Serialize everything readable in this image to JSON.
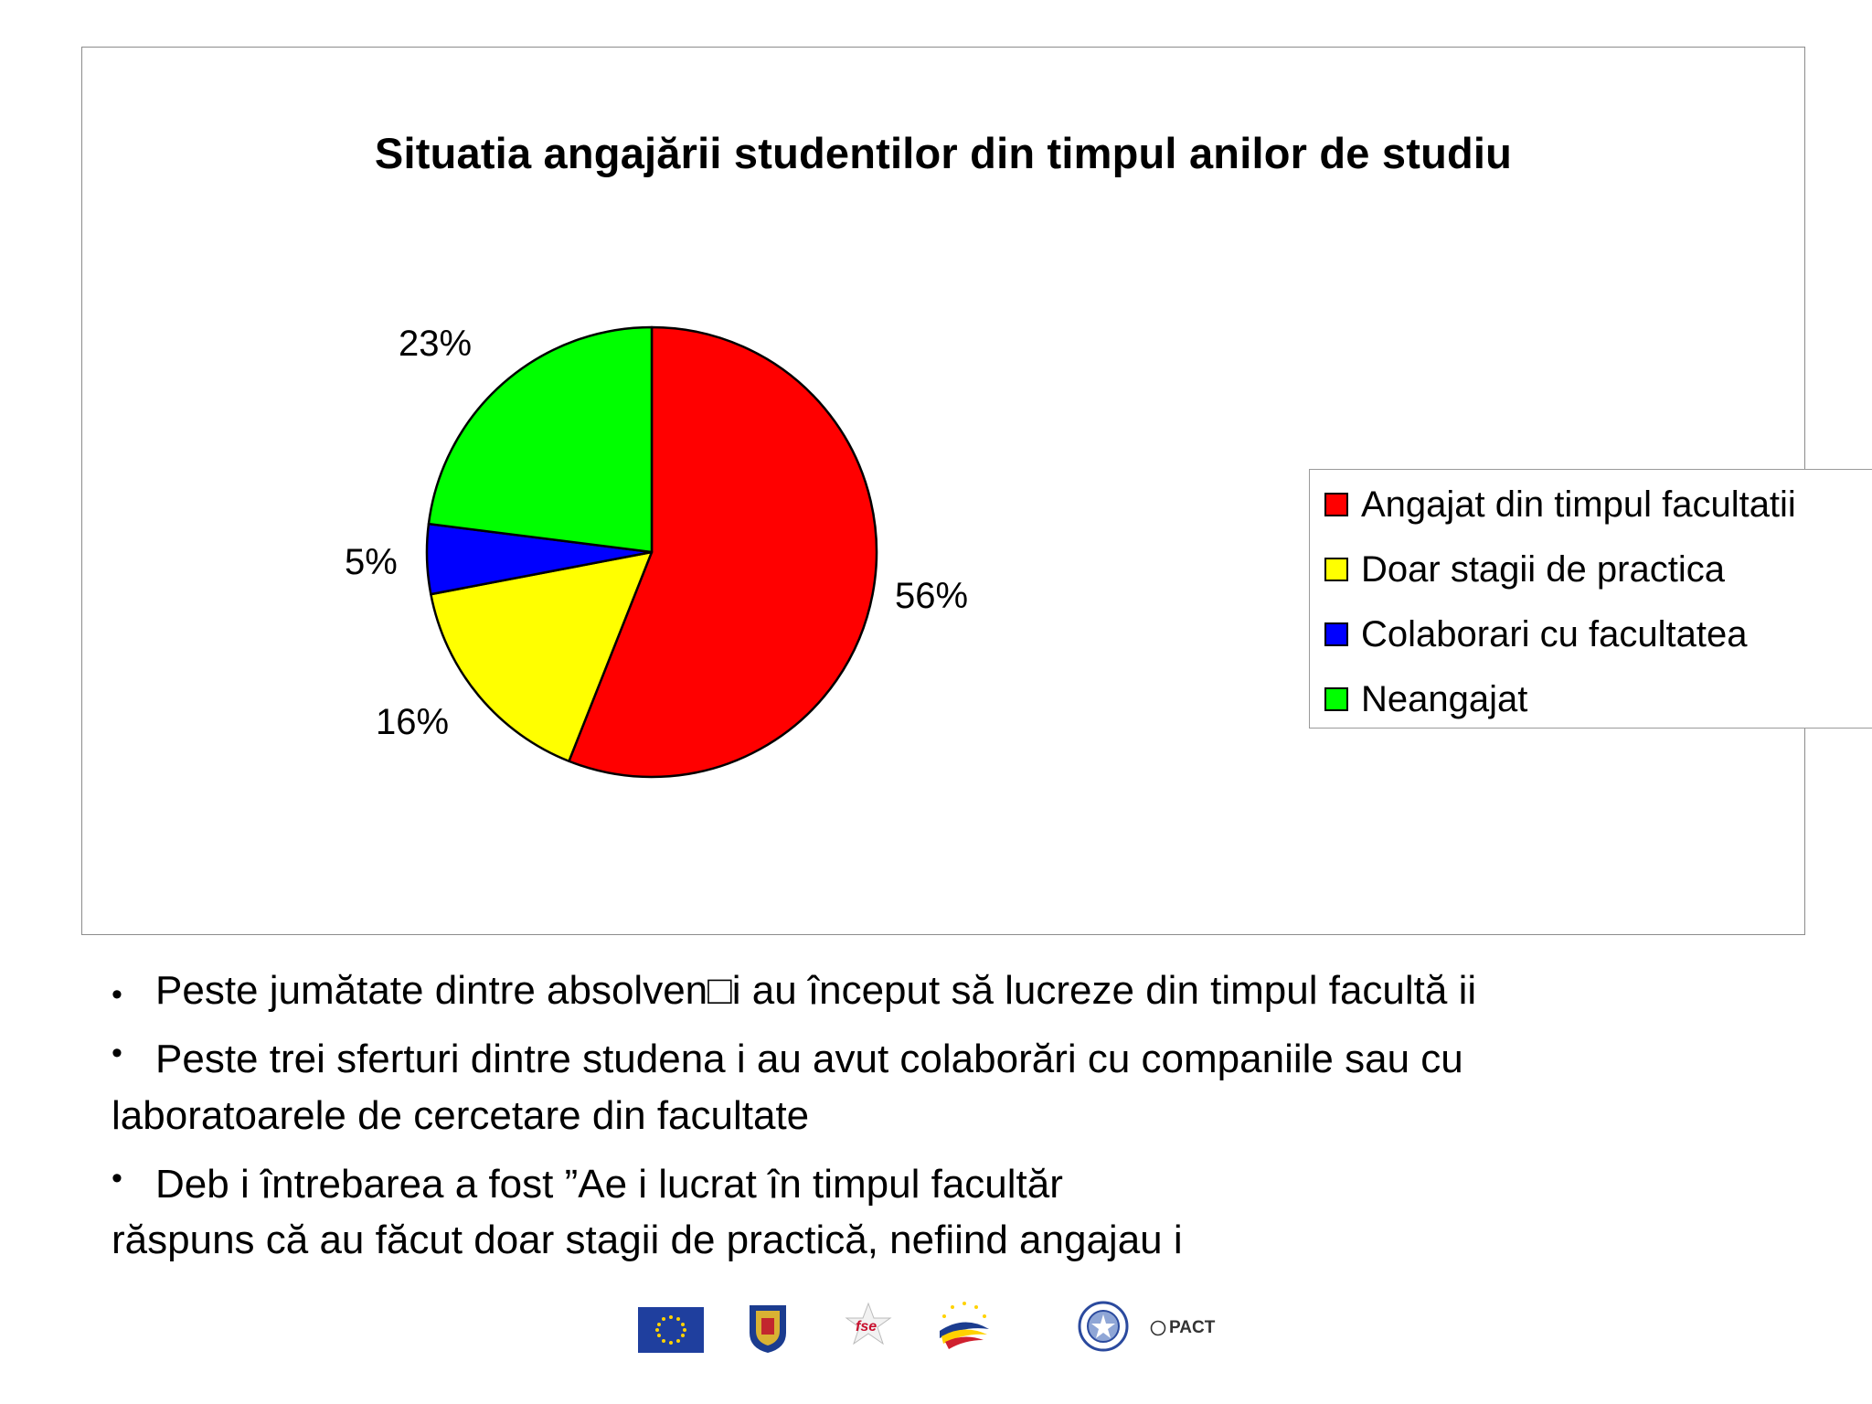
{
  "chart_data": {
    "type": "pie",
    "title": "Situatia angajării studentilor din timpul anilor de studiu",
    "categories": [
      "Angajat din timpul facultatii",
      "Doar stagii de practica",
      "Colaborari cu facultatea",
      "Neangajat"
    ],
    "values": [
      56,
      16,
      5,
      23
    ],
    "labels": [
      "56%",
      "16%",
      "5%",
      "23%"
    ],
    "colors": [
      "#ff0000",
      "#ffff00",
      "#0000ff",
      "#00ff00"
    ],
    "legend_position": "right"
  },
  "bullets": [
    "Peste jumătate dintre absolven□i au început să lucreze din timpul facultă   ii",
    "Peste trei sferturi dintre studena i au avut colaborări cu companiile sau cu",
    "laboratoarele de cercetare din facultate",
    "Deb   i întrebarea a fost ”Ae i lucrat în timpul facultăr",
    "răspuns că au făcut doar stagii de practică, nefiind angajau i"
  ],
  "logos": {
    "pact_text": "PACT"
  }
}
